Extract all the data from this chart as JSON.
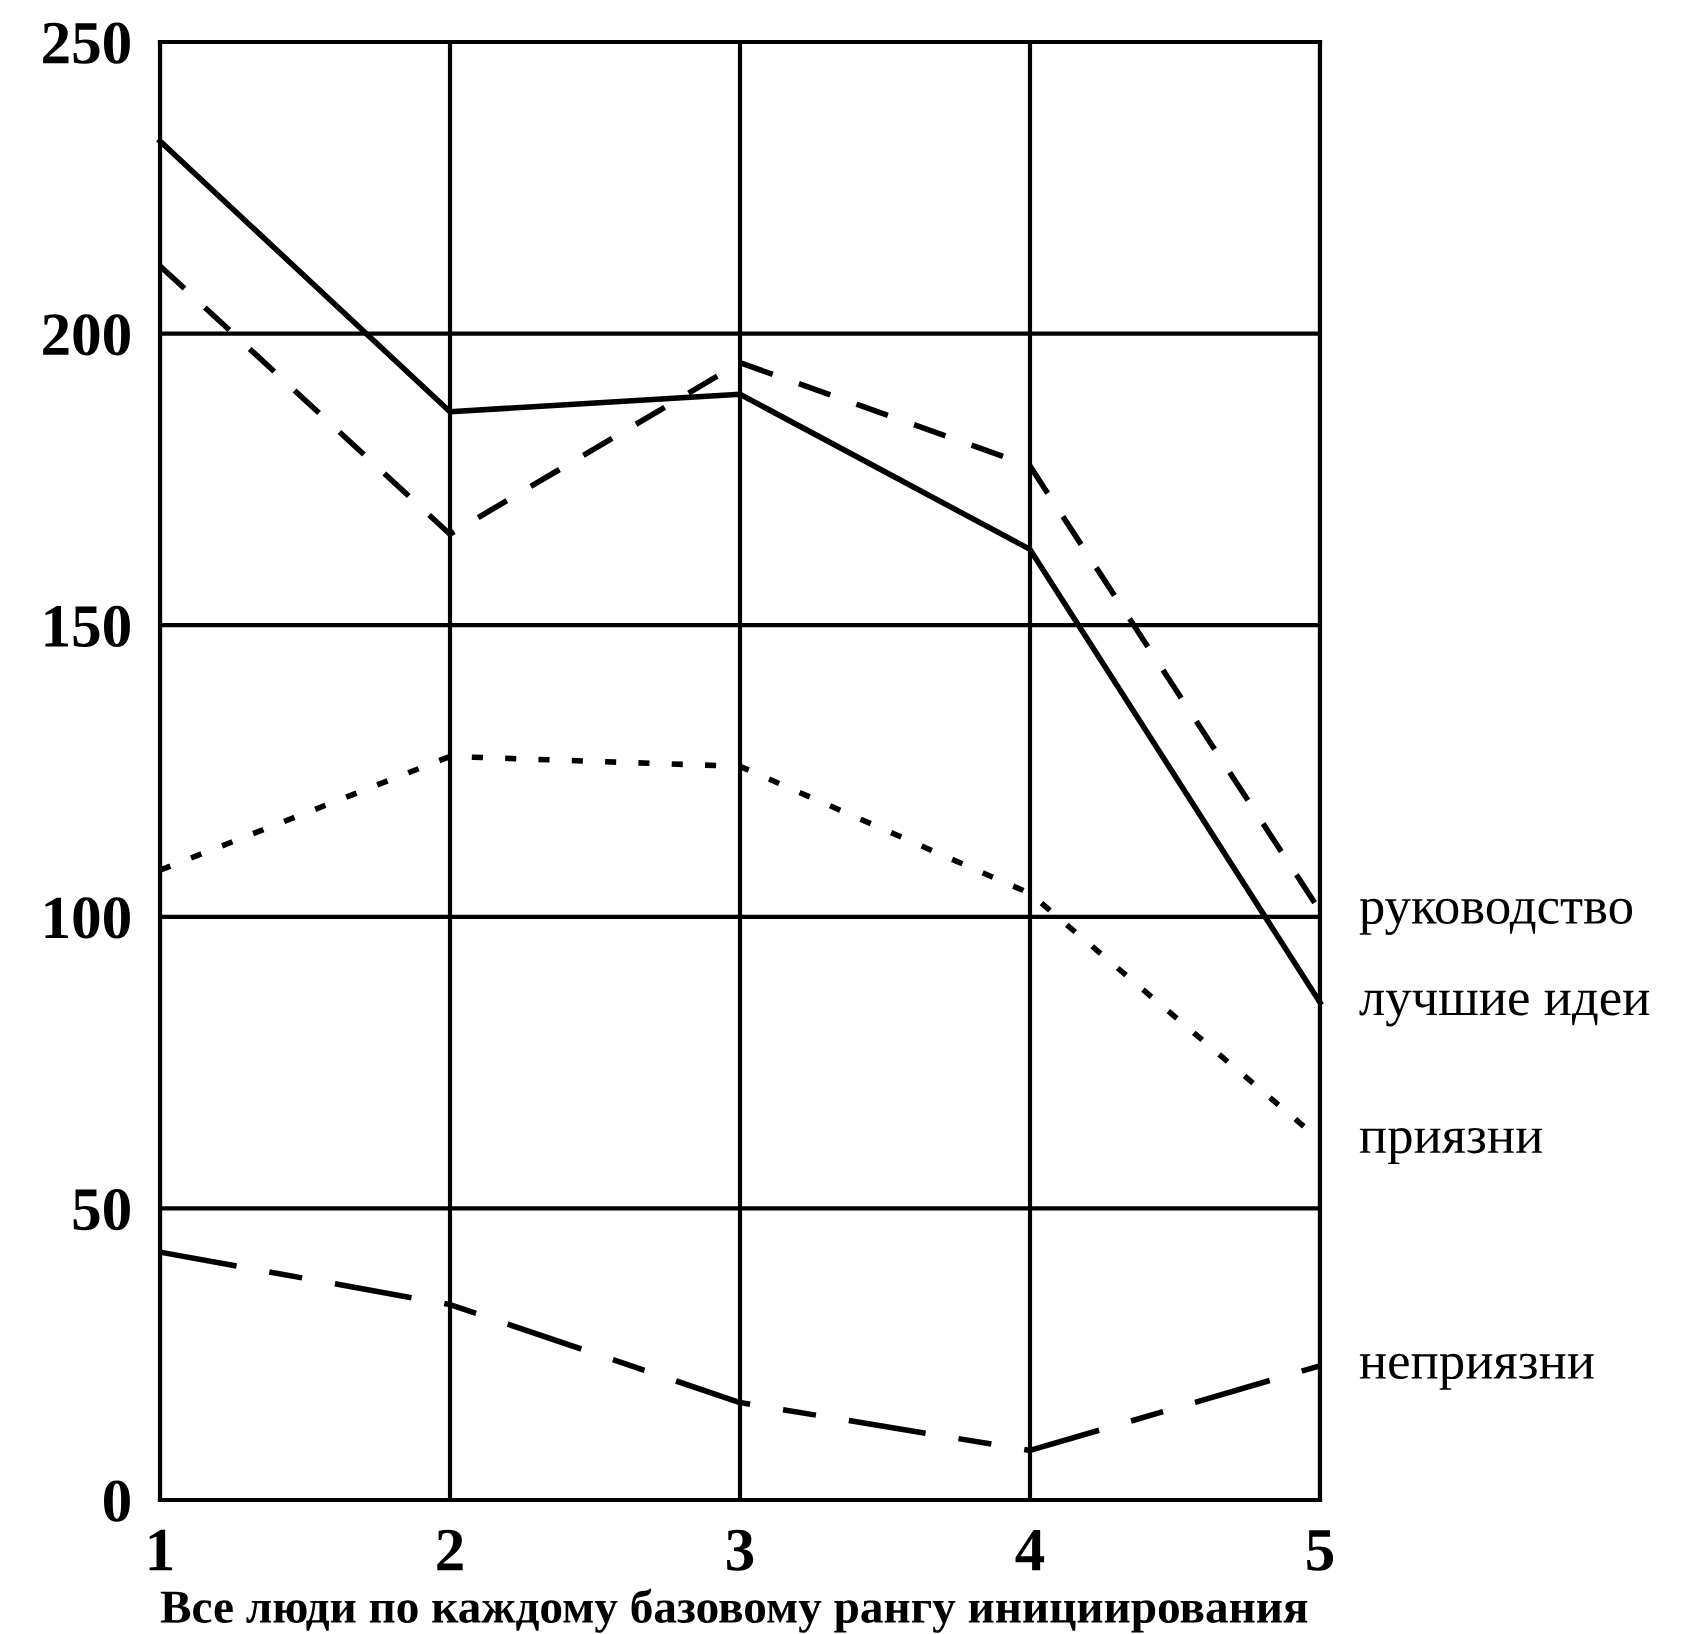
{
  "chart_data": {
    "type": "line",
    "xlabel": "Все люди по каждому базовому рангу инициирования",
    "x": [
      1,
      2,
      3,
      4,
      5
    ],
    "series": [
      {
        "name": "руководство",
        "color": "#000000",
        "line_style": "dashed",
        "values": [
          211.6,
          165.6,
          195,
          177.3,
          101
        ]
      },
      {
        "name": "лучшие идеи",
        "color": "#000000",
        "line_style": "solid",
        "values": [
          233,
          186.6,
          189.6,
          163,
          85.3
        ]
      },
      {
        "name": "приязни",
        "color": "#000000",
        "line_style": "dotted",
        "values": [
          108,
          127.5,
          125.8,
          104,
          61.7
        ]
      },
      {
        "name": "неприязни",
        "color": "#000000",
        "line_style": "dashdot",
        "values": [
          42.5,
          33.5,
          16.7,
          8.5,
          23
        ]
      }
    ],
    "xlim": [
      1,
      5
    ],
    "xticks": [
      1,
      2,
      3,
      4,
      5
    ],
    "ylim": [
      0,
      250
    ],
    "yticks": [
      0,
      50,
      100,
      150,
      200,
      250
    ],
    "grid": true,
    "legend": false,
    "marker": "none"
  }
}
